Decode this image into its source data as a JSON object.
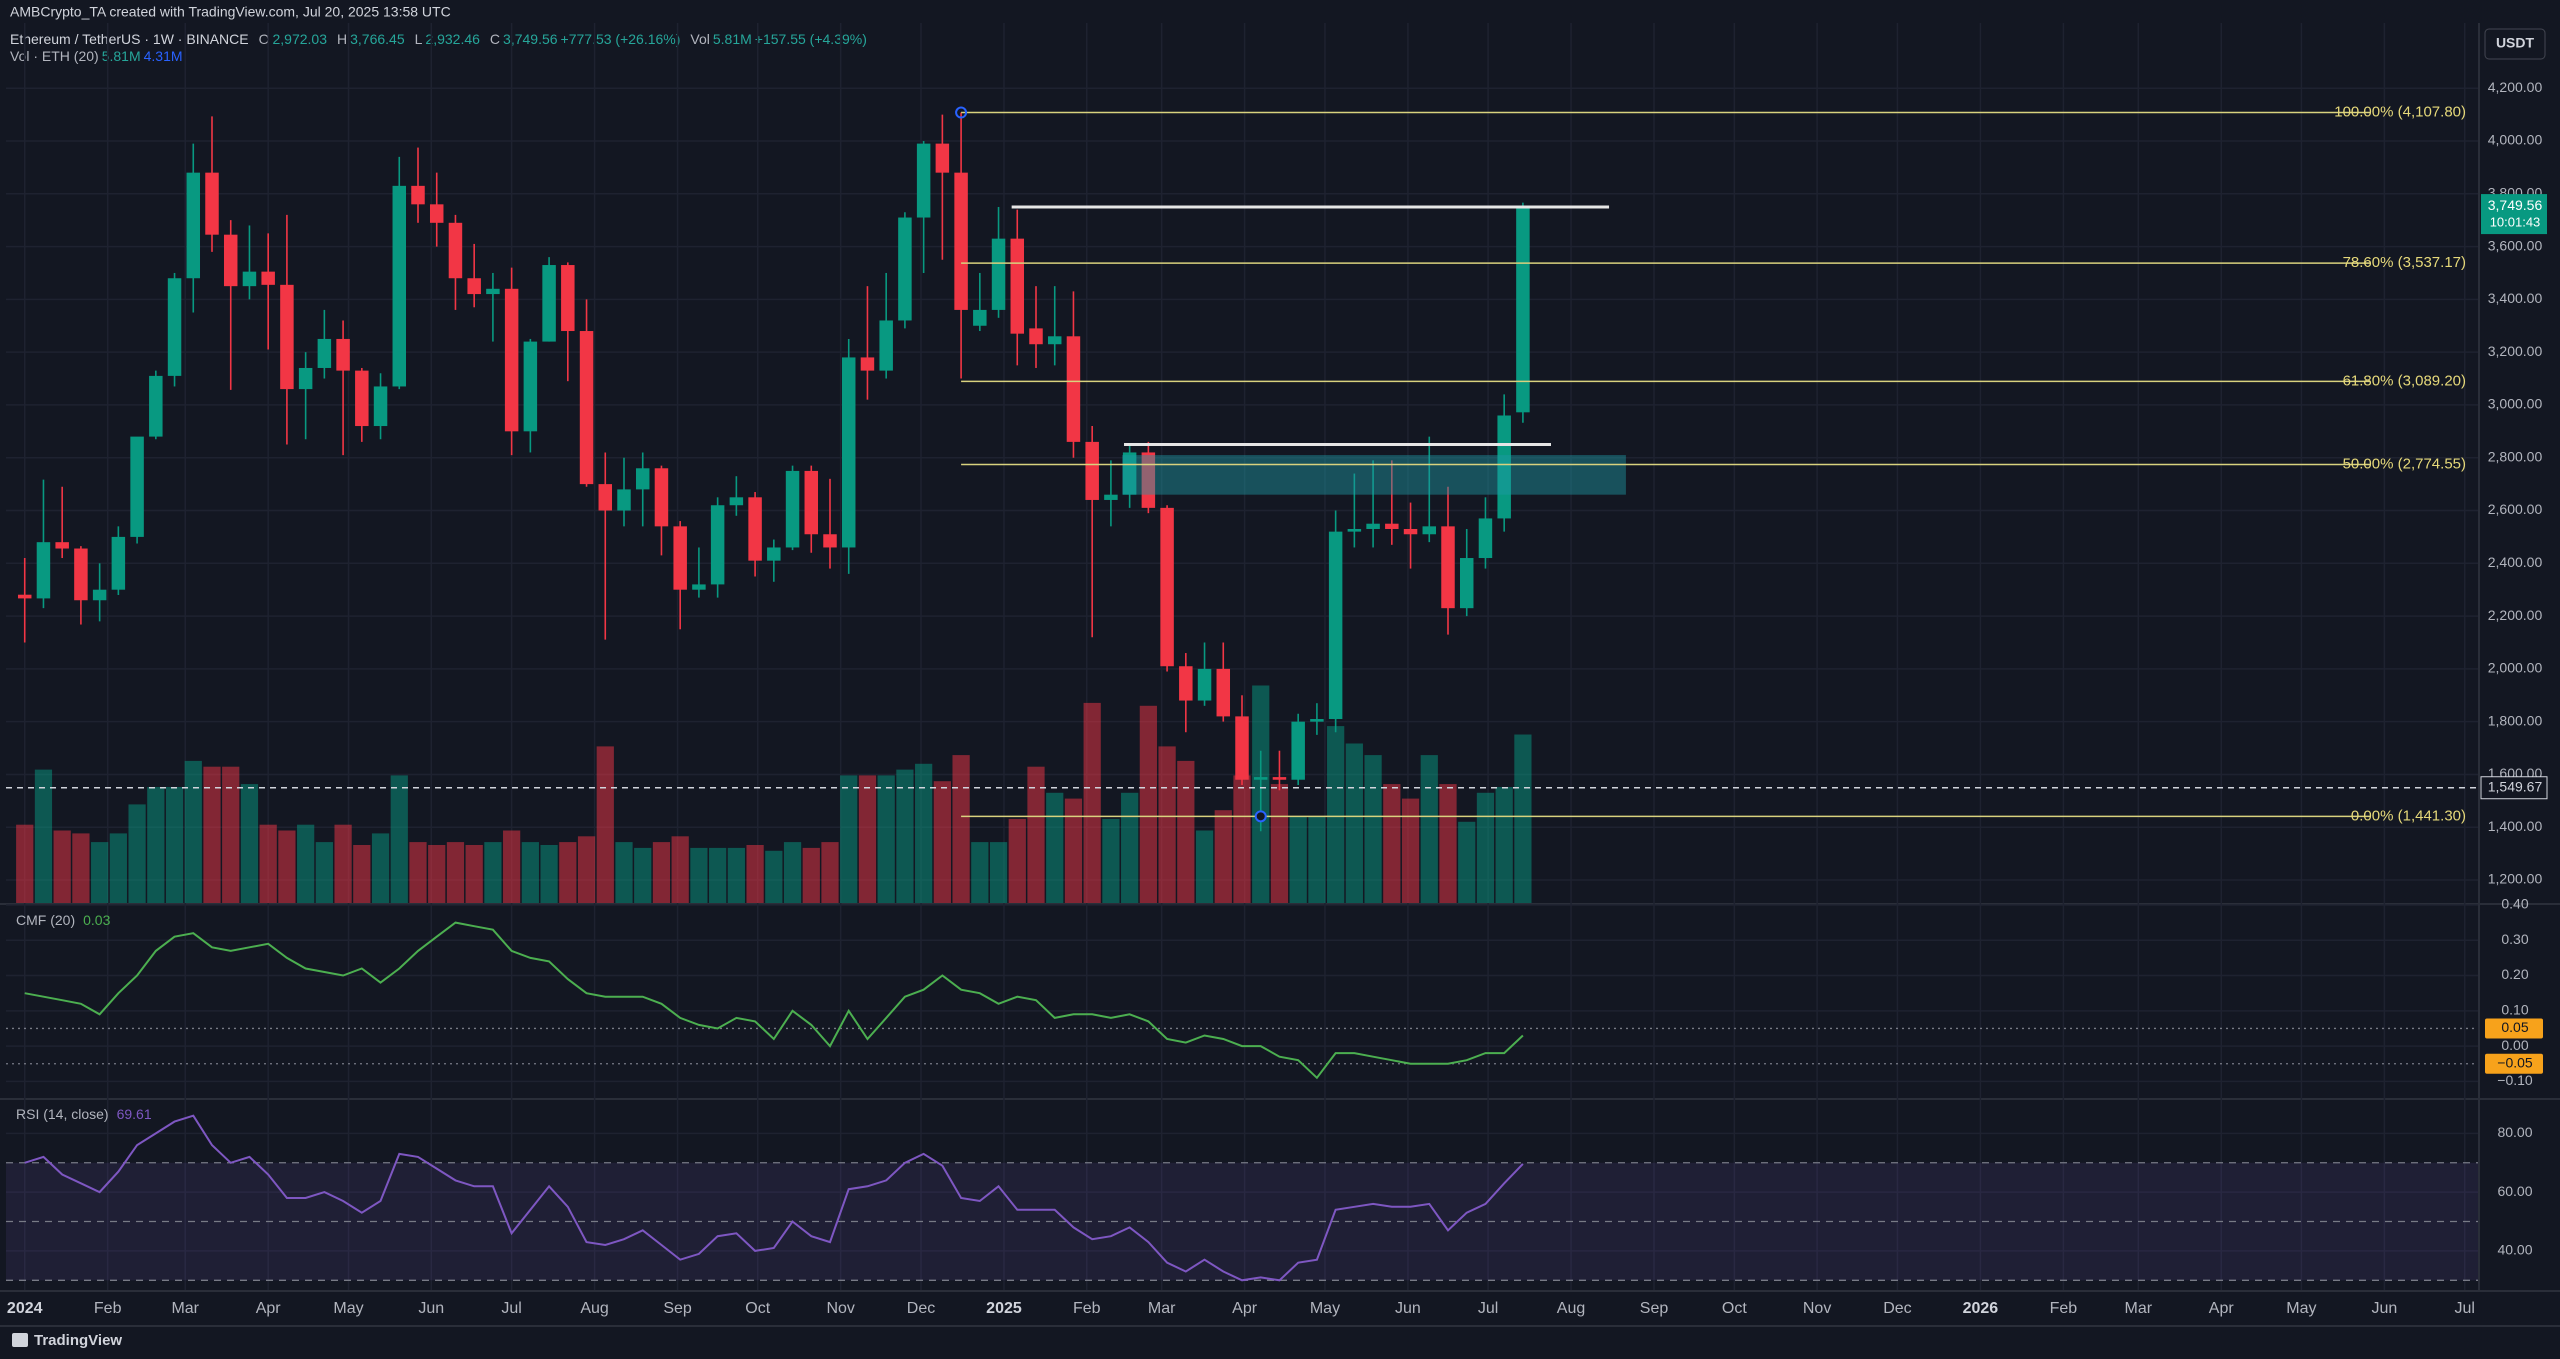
{
  "header": {
    "credit": "AMBCrypto_TA created with TradingView.com, Jul 20, 2025 13:58 UTC",
    "legend": [
      {
        "text": "Ethereum / TetherUS · 1W · BINANCE",
        "color": "#d1d4dc"
      },
      {
        "text": "O",
        "color": "#b2b5be"
      },
      {
        "text": "2,972.03",
        "color": "#26a69a"
      },
      {
        "text": "H",
        "color": "#b2b5be"
      },
      {
        "text": "3,766.45",
        "color": "#26a69a"
      },
      {
        "text": "L",
        "color": "#b2b5be"
      },
      {
        "text": "2,932.46",
        "color": "#26a69a"
      },
      {
        "text": "C",
        "color": "#b2b5be"
      },
      {
        "text": "3,749.56",
        "color": "#26a69a"
      },
      {
        "text": "+777.53 (+26.16%)",
        "color": "#26a69a"
      },
      {
        "text": "Vol",
        "color": "#b2b5be"
      },
      {
        "text": "5.81M",
        "color": "#26a69a"
      },
      {
        "text": "+157.55 (+4.39%)",
        "color": "#26a69a"
      }
    ],
    "volume_legend": [
      {
        "text": "Vol · ETH (20)",
        "color": "#b2b5be"
      },
      {
        "text": "5.81M",
        "color": "#26a69a"
      },
      {
        "text": "4.31M",
        "color": "#2962ff"
      }
    ]
  },
  "chart_data": [
    {
      "type": "candlestick",
      "currency": "USDT",
      "up_color": "#089981",
      "down_color": "#f23645",
      "open": [
        2281,
        2267,
        2480,
        2456,
        2260,
        2300,
        2500,
        2880,
        3110,
        3480,
        3880,
        3645,
        3450,
        3505,
        3455,
        3060,
        3140,
        3250,
        3130,
        2920,
        3070,
        3830,
        3760,
        3690,
        3480,
        3420,
        3440,
        2900,
        3240,
        3530,
        3280,
        2700,
        2600,
        2680,
        2760,
        2540,
        2300,
        2320,
        2620,
        2650,
        2410,
        2460,
        2750,
        2510,
        2460,
        3180,
        3130,
        3320,
        3710,
        3990,
        3880,
        3300,
        3360,
        3630,
        3290,
        3230,
        3260,
        2860,
        2640,
        2660,
        2820,
        2610,
        2010,
        1880,
        2000,
        1820,
        1580,
        1590,
        1580,
        1800,
        1810,
        2520,
        2530,
        2550,
        2530,
        2510,
        2540,
        2230,
        2420,
        2570,
        2972.03
      ],
      "high": [
        2420,
        2717,
        2690,
        2465,
        2400,
        2540,
        2870,
        3130,
        3500,
        3990,
        4093,
        3700,
        3680,
        3650,
        3720,
        3200,
        3360,
        3320,
        3140,
        3120,
        3940,
        3975,
        3880,
        3720,
        3610,
        3500,
        3520,
        3250,
        3560,
        3540,
        3400,
        2820,
        2800,
        2820,
        2770,
        2560,
        2460,
        2650,
        2730,
        2670,
        2490,
        2770,
        2770,
        2720,
        3250,
        3450,
        3500,
        3730,
        4000,
        4100,
        4107.8,
        3500,
        3750,
        3740,
        3450,
        3450,
        3430,
        2920,
        2790,
        2850,
        2860,
        2620,
        2060,
        2100,
        2100,
        1900,
        1690,
        1690,
        1830,
        1870,
        2600,
        2740,
        2790,
        2790,
        2630,
        2880,
        2690,
        2530,
        2650,
        3040,
        3766.45
      ],
      "low": [
        2100,
        2230,
        2420,
        2168,
        2180,
        2280,
        2475,
        2870,
        3070,
        3350,
        3580,
        3057,
        3400,
        3210,
        2850,
        2870,
        3100,
        2810,
        2860,
        2870,
        3060,
        3690,
        3600,
        3360,
        3370,
        3240,
        2810,
        2820,
        3240,
        3090,
        2690,
        2111,
        2540,
        2540,
        2430,
        2150,
        2270,
        2270,
        2580,
        2350,
        2330,
        2450,
        2440,
        2380,
        2360,
        3020,
        3100,
        3290,
        3500,
        3550,
        3100,
        3280,
        3330,
        3150,
        3140,
        3150,
        2800,
        2120,
        2540,
        2610,
        2590,
        1990,
        1760,
        1860,
        1800,
        1560,
        1385,
        1540,
        1560,
        1750,
        1760,
        2460,
        2460,
        2470,
        2380,
        2480,
        2130,
        2200,
        2380,
        2520,
        2932.46
      ],
      "close": [
        2267,
        2480,
        2456,
        2260,
        2300,
        2500,
        2880,
        3110,
        3480,
        3880,
        3645,
        3450,
        3505,
        3455,
        3060,
        3140,
        3250,
        3130,
        2920,
        3070,
        3830,
        3760,
        3690,
        3480,
        3420,
        3440,
        2900,
        3240,
        3530,
        3280,
        2700,
        2600,
        2680,
        2760,
        2540,
        2300,
        2320,
        2620,
        2650,
        2410,
        2460,
        2750,
        2510,
        2460,
        3180,
        3130,
        3320,
        3710,
        3990,
        3880,
        3360,
        3360,
        3630,
        3270,
        3230,
        3260,
        2860,
        2640,
        2660,
        2820,
        2610,
        2010,
        1880,
        2000,
        1820,
        1580,
        1590,
        1580,
        1800,
        1810,
        2520,
        2530,
        2550,
        2530,
        2510,
        2540,
        2230,
        2420,
        2570,
        2960,
        3749.56
      ],
      "volume": [
        2.7,
        4.6,
        2.5,
        2.4,
        2.1,
        2.4,
        3.4,
        4.0,
        4.0,
        4.9,
        4.7,
        4.7,
        4.1,
        2.7,
        2.5,
        2.7,
        2.1,
        2.7,
        2.0,
        2.4,
        4.4,
        2.1,
        2.0,
        2.1,
        2.0,
        2.1,
        2.5,
        2.1,
        2.0,
        2.1,
        2.3,
        5.4,
        2.1,
        1.9,
        2.1,
        2.3,
        1.9,
        1.9,
        1.9,
        2.0,
        1.8,
        2.1,
        1.9,
        2.1,
        4.4,
        4.4,
        4.4,
        4.6,
        4.8,
        4.2,
        5.1,
        2.1,
        2.1,
        2.9,
        4.7,
        3.8,
        3.6,
        6.9,
        2.9,
        3.8,
        6.8,
        5.4,
        4.9,
        2.5,
        3.2,
        4.4,
        7.5,
        4.1,
        3.0,
        3.0,
        6.1,
        5.5,
        5.1,
        4.1,
        3.6,
        5.1,
        4.1,
        2.8,
        3.8,
        4.0,
        5.81
      ],
      "xlim": [
        -1,
        131
      ],
      "xticks": [
        {
          "value": 0,
          "label": "2024"
        },
        {
          "value": 4.43,
          "label": "Feb"
        },
        {
          "value": 8.57,
          "label": "Mar"
        },
        {
          "value": 13,
          "label": "Apr"
        },
        {
          "value": 17.29,
          "label": "May"
        },
        {
          "value": 21.71,
          "label": "Jun"
        },
        {
          "value": 26,
          "label": "Jul"
        },
        {
          "value": 30.43,
          "label": "Aug"
        },
        {
          "value": 34.86,
          "label": "Sep"
        },
        {
          "value": 39.14,
          "label": "Oct"
        },
        {
          "value": 43.57,
          "label": "Nov"
        },
        {
          "value": 47.86,
          "label": "Dec"
        },
        {
          "value": 52.29,
          "label": "2025"
        },
        {
          "value": 56.71,
          "label": "Feb"
        },
        {
          "value": 60.71,
          "label": "Mar"
        },
        {
          "value": 65.14,
          "label": "Apr"
        },
        {
          "value": 69.43,
          "label": "May"
        },
        {
          "value": 73.86,
          "label": "Jun"
        },
        {
          "value": 78.14,
          "label": "Jul"
        },
        {
          "value": 82.57,
          "label": "Aug"
        },
        {
          "value": 87,
          "label": "Sep"
        },
        {
          "value": 91.29,
          "label": "Oct"
        },
        {
          "value": 95.71,
          "label": "Nov"
        },
        {
          "value": 100,
          "label": "Dec"
        },
        {
          "value": 104.43,
          "label": "2026"
        },
        {
          "value": 108.86,
          "label": "Feb"
        },
        {
          "value": 112.86,
          "label": "Mar"
        },
        {
          "value": 117.29,
          "label": "Apr"
        },
        {
          "value": 121.57,
          "label": "May"
        },
        {
          "value": 126,
          "label": "Jun"
        },
        {
          "value": 130.29,
          "label": "Jul"
        }
      ],
      "ylim": [
        1113,
        4447
      ],
      "yticks": [
        {
          "value": 1200,
          "label": "1,200.00"
        },
        {
          "value": 1400,
          "label": "1,400.00"
        },
        {
          "value": 1600,
          "label": "1,600.00"
        },
        {
          "value": 1800,
          "label": "1,800.00"
        },
        {
          "value": 2000,
          "label": "2,000.00"
        },
        {
          "value": 2200,
          "label": "2,200.00"
        },
        {
          "value": 2400,
          "label": "2,400.00"
        },
        {
          "value": 2600,
          "label": "2,600.00"
        },
        {
          "value": 2800,
          "label": "2,800.00"
        },
        {
          "value": 3000,
          "label": "3,000.00"
        },
        {
          "value": 3200,
          "label": "3,200.00"
        },
        {
          "value": 3400,
          "label": "3,400.00"
        },
        {
          "value": 3600,
          "label": "3,600.00"
        },
        {
          "value": 3800,
          "label": "3,800.00"
        },
        {
          "value": 4000,
          "label": "4,000.00"
        },
        {
          "value": 4200,
          "label": "4,200.00"
        }
      ],
      "grid": true,
      "fib_color": "#d9d27e",
      "fib_levels": [
        {
          "value": 4107.8,
          "label": "100.00% (4,107.80)"
        },
        {
          "value": 3537.17,
          "label": "78.60% (3,537.17)"
        },
        {
          "value": 3089.2,
          "label": "61.80% (3,089.20)"
        },
        {
          "value": 2774.55,
          "label": "50.00% (2,774.55)"
        },
        {
          "value": 1441.3,
          "label": "0.00% (1,441.30)"
        }
      ],
      "levels": [
        3750,
        2850
      ],
      "zone": [
        2660,
        2810
      ],
      "zone_color": "#1f98a3",
      "last_price": {
        "value": 3749.56,
        "label": "3,749.56",
        "countdown": "10:01:43"
      },
      "crosshair": {
        "value": 1549.67,
        "label": "1,549.67"
      }
    },
    {
      "type": "line",
      "name": "CMF (20)",
      "current": "0.03",
      "color": "#4caf50",
      "values": [
        0.15,
        0.14,
        0.13,
        0.12,
        0.09,
        0.15,
        0.2,
        0.27,
        0.31,
        0.32,
        0.28,
        0.27,
        0.28,
        0.29,
        0.25,
        0.22,
        0.21,
        0.2,
        0.22,
        0.18,
        0.22,
        0.27,
        0.31,
        0.35,
        0.34,
        0.33,
        0.27,
        0.25,
        0.24,
        0.19,
        0.15,
        0.14,
        0.14,
        0.14,
        0.12,
        0.08,
        0.06,
        0.05,
        0.08,
        0.07,
        0.02,
        0.1,
        0.06,
        0.0,
        0.1,
        0.02,
        0.08,
        0.14,
        0.16,
        0.2,
        0.16,
        0.15,
        0.12,
        0.14,
        0.13,
        0.08,
        0.09,
        0.09,
        0.08,
        0.09,
        0.07,
        0.02,
        0.01,
        0.03,
        0.02,
        0.0,
        0.0,
        -0.03,
        -0.04,
        -0.09,
        -0.02,
        -0.02,
        -0.03,
        -0.04,
        -0.05,
        -0.05,
        -0.05,
        -0.04,
        -0.02,
        -0.02,
        0.03
      ],
      "ylim": [
        -0.15,
        0.4
      ],
      "yticks": [
        {
          "value": 0.4,
          "label": "0.40"
        },
        {
          "value": 0.3,
          "label": "0.30"
        },
        {
          "value": 0.2,
          "label": "0.20"
        },
        {
          "value": 0.1,
          "label": "0.10"
        },
        {
          "value": 0,
          "label": "0.00"
        },
        {
          "value": -0.1,
          "label": "−0.10"
        }
      ],
      "bands": [
        {
          "value": 0.05,
          "label": "0.05"
        },
        {
          "value": -0.05,
          "label": "−0.05"
        }
      ],
      "band_color": "#f7a21b"
    },
    {
      "type": "line",
      "name": "RSI (14, close)",
      "current": "69.61",
      "color": "#7e57c2",
      "values": [
        70,
        72,
        66,
        63,
        60,
        67,
        76,
        80,
        84,
        86,
        76,
        70,
        72,
        66,
        58,
        58,
        60,
        57,
        53,
        57,
        73,
        72,
        68,
        64,
        62,
        62,
        46,
        54,
        62,
        55,
        43,
        42,
        44,
        47,
        42,
        37,
        39,
        45,
        46,
        40,
        41,
        50,
        45,
        43,
        61,
        62,
        64,
        70,
        73,
        69,
        58,
        57,
        62,
        54,
        54,
        54,
        48,
        44,
        45,
        48,
        43,
        36,
        33,
        37,
        33,
        30,
        31,
        30,
        36,
        37,
        54,
        55,
        56,
        55,
        55,
        56,
        47,
        53,
        56,
        63,
        69.61
      ],
      "ylim": [
        26.7,
        91.7
      ],
      "yticks": [
        {
          "value": 80,
          "label": "80.00"
        },
        {
          "value": 60,
          "label": "60.00"
        },
        {
          "value": 40,
          "label": "40.00"
        }
      ],
      "bands": [
        70,
        50,
        30
      ],
      "band_color": "#7e57c2"
    }
  ],
  "footer": "TradingView"
}
